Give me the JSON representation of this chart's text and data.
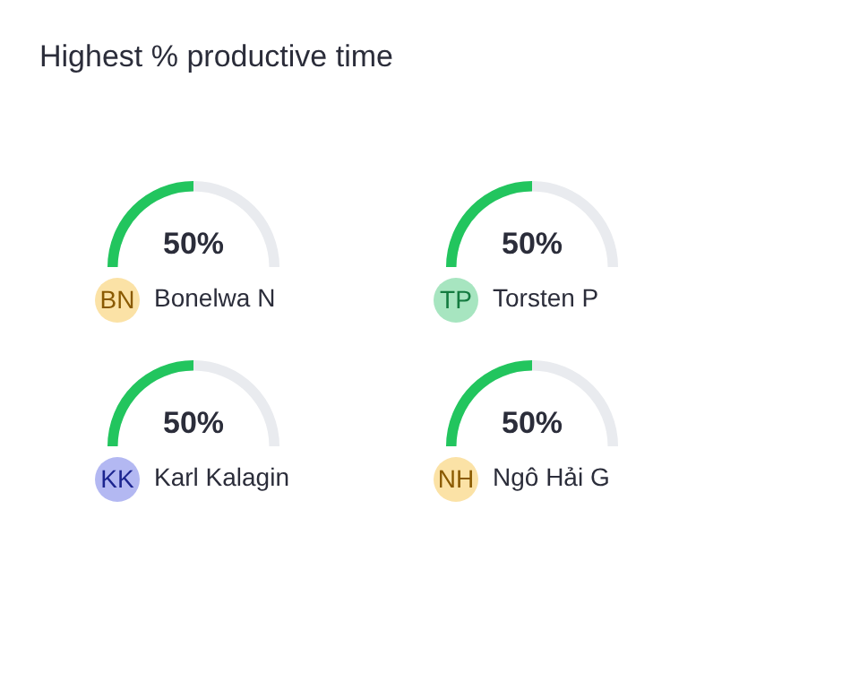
{
  "chart_data": [
    {
      "type": "other",
      "title": "Highest % productive time"
    },
    {
      "type": "donut",
      "categories": [
        null,
        null
      ],
      "values": [
        50,
        50
      ],
      "colors": [
        "#22c55e",
        "#e9ebef"
      ],
      "xlabel": "Bonelwa N",
      "annotations": [
        "50%",
        "BN"
      ]
    },
    {
      "type": "donut",
      "categories": [
        null,
        null
      ],
      "values": [
        50,
        50
      ],
      "colors": [
        "#22c55e",
        "#e9ebef"
      ],
      "xlabel": "Torsten P",
      "annotations": [
        "50%",
        "TP"
      ]
    },
    {
      "type": "donut",
      "categories": [
        null,
        null
      ],
      "values": [
        50,
        50
      ],
      "colors": [
        "#22c55e",
        "#e9ebef"
      ],
      "xlabel": "Karl Kalagin",
      "annotations": [
        "50%",
        "KK"
      ]
    },
    {
      "type": "donut",
      "categories": [
        null,
        null
      ],
      "values": [
        50,
        50
      ],
      "colors": [
        "#22c55e",
        "#e9ebef"
      ],
      "xlabel": "Ngô Hải G",
      "annotations": [
        "50%",
        "NH"
      ]
    }
  ]
}
